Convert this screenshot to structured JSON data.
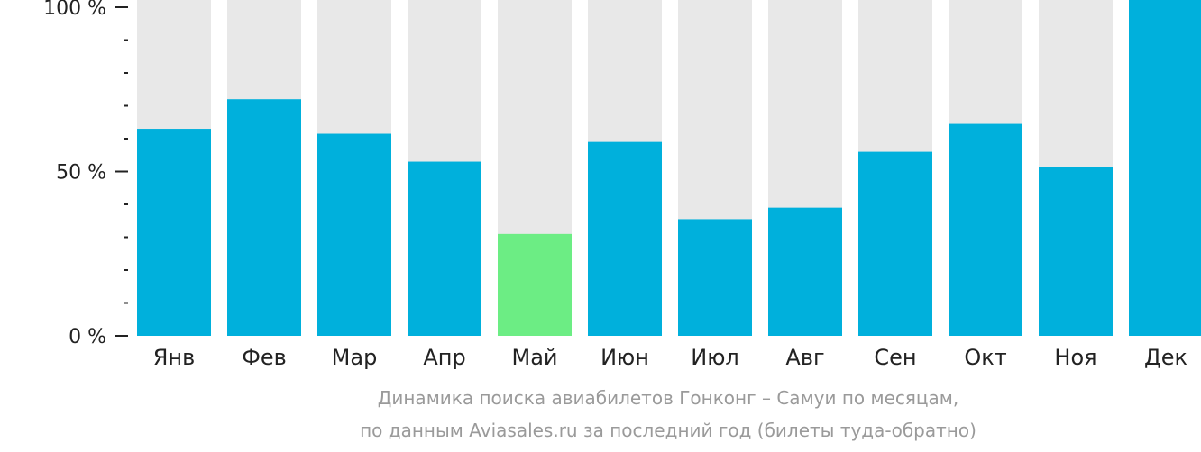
{
  "chart_data": {
    "type": "bar",
    "categories": [
      "Янв",
      "Фев",
      "Мар",
      "Апр",
      "Май",
      "Июн",
      "Июл",
      "Авг",
      "Сен",
      "Окт",
      "Ноя",
      "Дек"
    ],
    "values": [
      63,
      72,
      61.5,
      53,
      31,
      59,
      35.5,
      39,
      56,
      64.5,
      51.5,
      100
    ],
    "ylim": [
      0,
      100
    ],
    "yticks": [
      {
        "value": 100,
        "label": "100 %"
      },
      {
        "value": 50,
        "label": "50 %"
      },
      {
        "value": 0,
        "label": "0 %"
      }
    ],
    "minor_ticks": [
      10,
      20,
      30,
      40,
      60,
      70,
      80,
      90
    ],
    "highlight_category": "Май",
    "grid": false,
    "title": "",
    "xlabel": "",
    "ylabel": ""
  },
  "colors": {
    "bar": "#00b0dc",
    "highlight": "#6ced84",
    "background_bar": "#e8e8e8",
    "axis": "#222222",
    "caption": "#9a9a9a"
  },
  "caption": {
    "line1": "Динамика поиска авиабилетов Гонконг – Самуи по месяцам,",
    "line2": "по данным Aviasales.ru за последний год (билеты туда-обратно)"
  }
}
